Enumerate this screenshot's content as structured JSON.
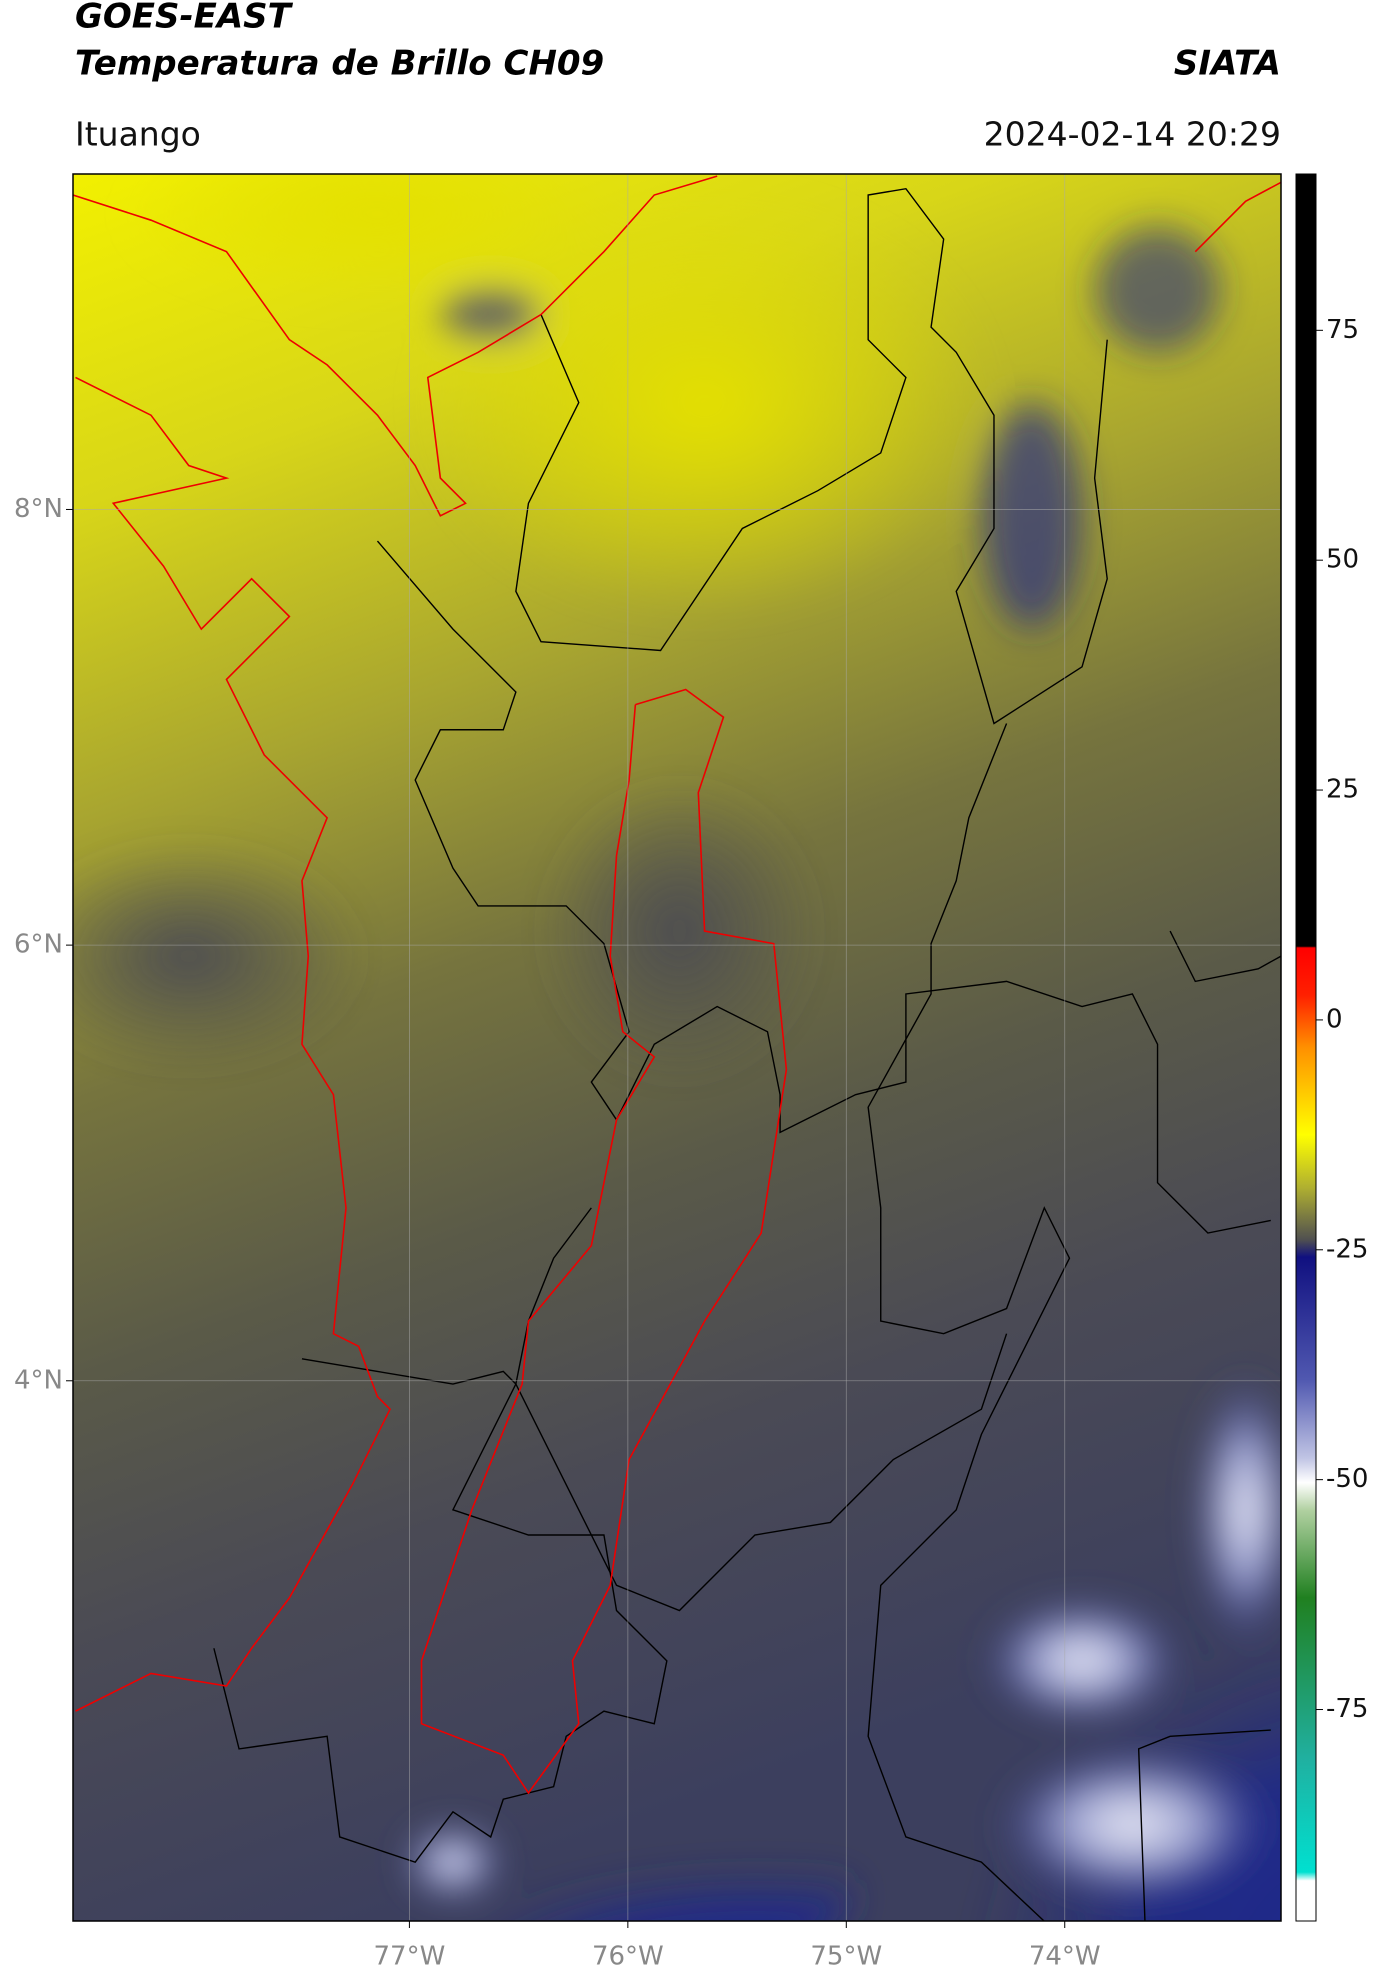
{
  "map": {
    "title": "GOES-EAST",
    "subtitle": "Temperatura de Brillo CH09",
    "source": "SIATA",
    "region": "Ituango",
    "timestamp": "2024-02-14 20:29",
    "xlim": [
      -78.54,
      -73.01
    ],
    "ylim": [
      1.52,
      9.54
    ],
    "xticks": [
      {
        "value": -77,
        "label": "77°W"
      },
      {
        "value": -76,
        "label": "76°W"
      },
      {
        "value": -75,
        "label": "75°W"
      },
      {
        "value": -74,
        "label": "74°W"
      }
    ],
    "yticks": [
      {
        "value": 4,
        "label": "4°N"
      },
      {
        "value": 6,
        "label": "6°N"
      },
      {
        "value": 8,
        "label": "8°N"
      }
    ],
    "colorbar": {
      "lim": [
        -98,
        92
      ],
      "ticks": [
        -75,
        -50,
        -25,
        0,
        25,
        50,
        75
      ]
    }
  }
}
